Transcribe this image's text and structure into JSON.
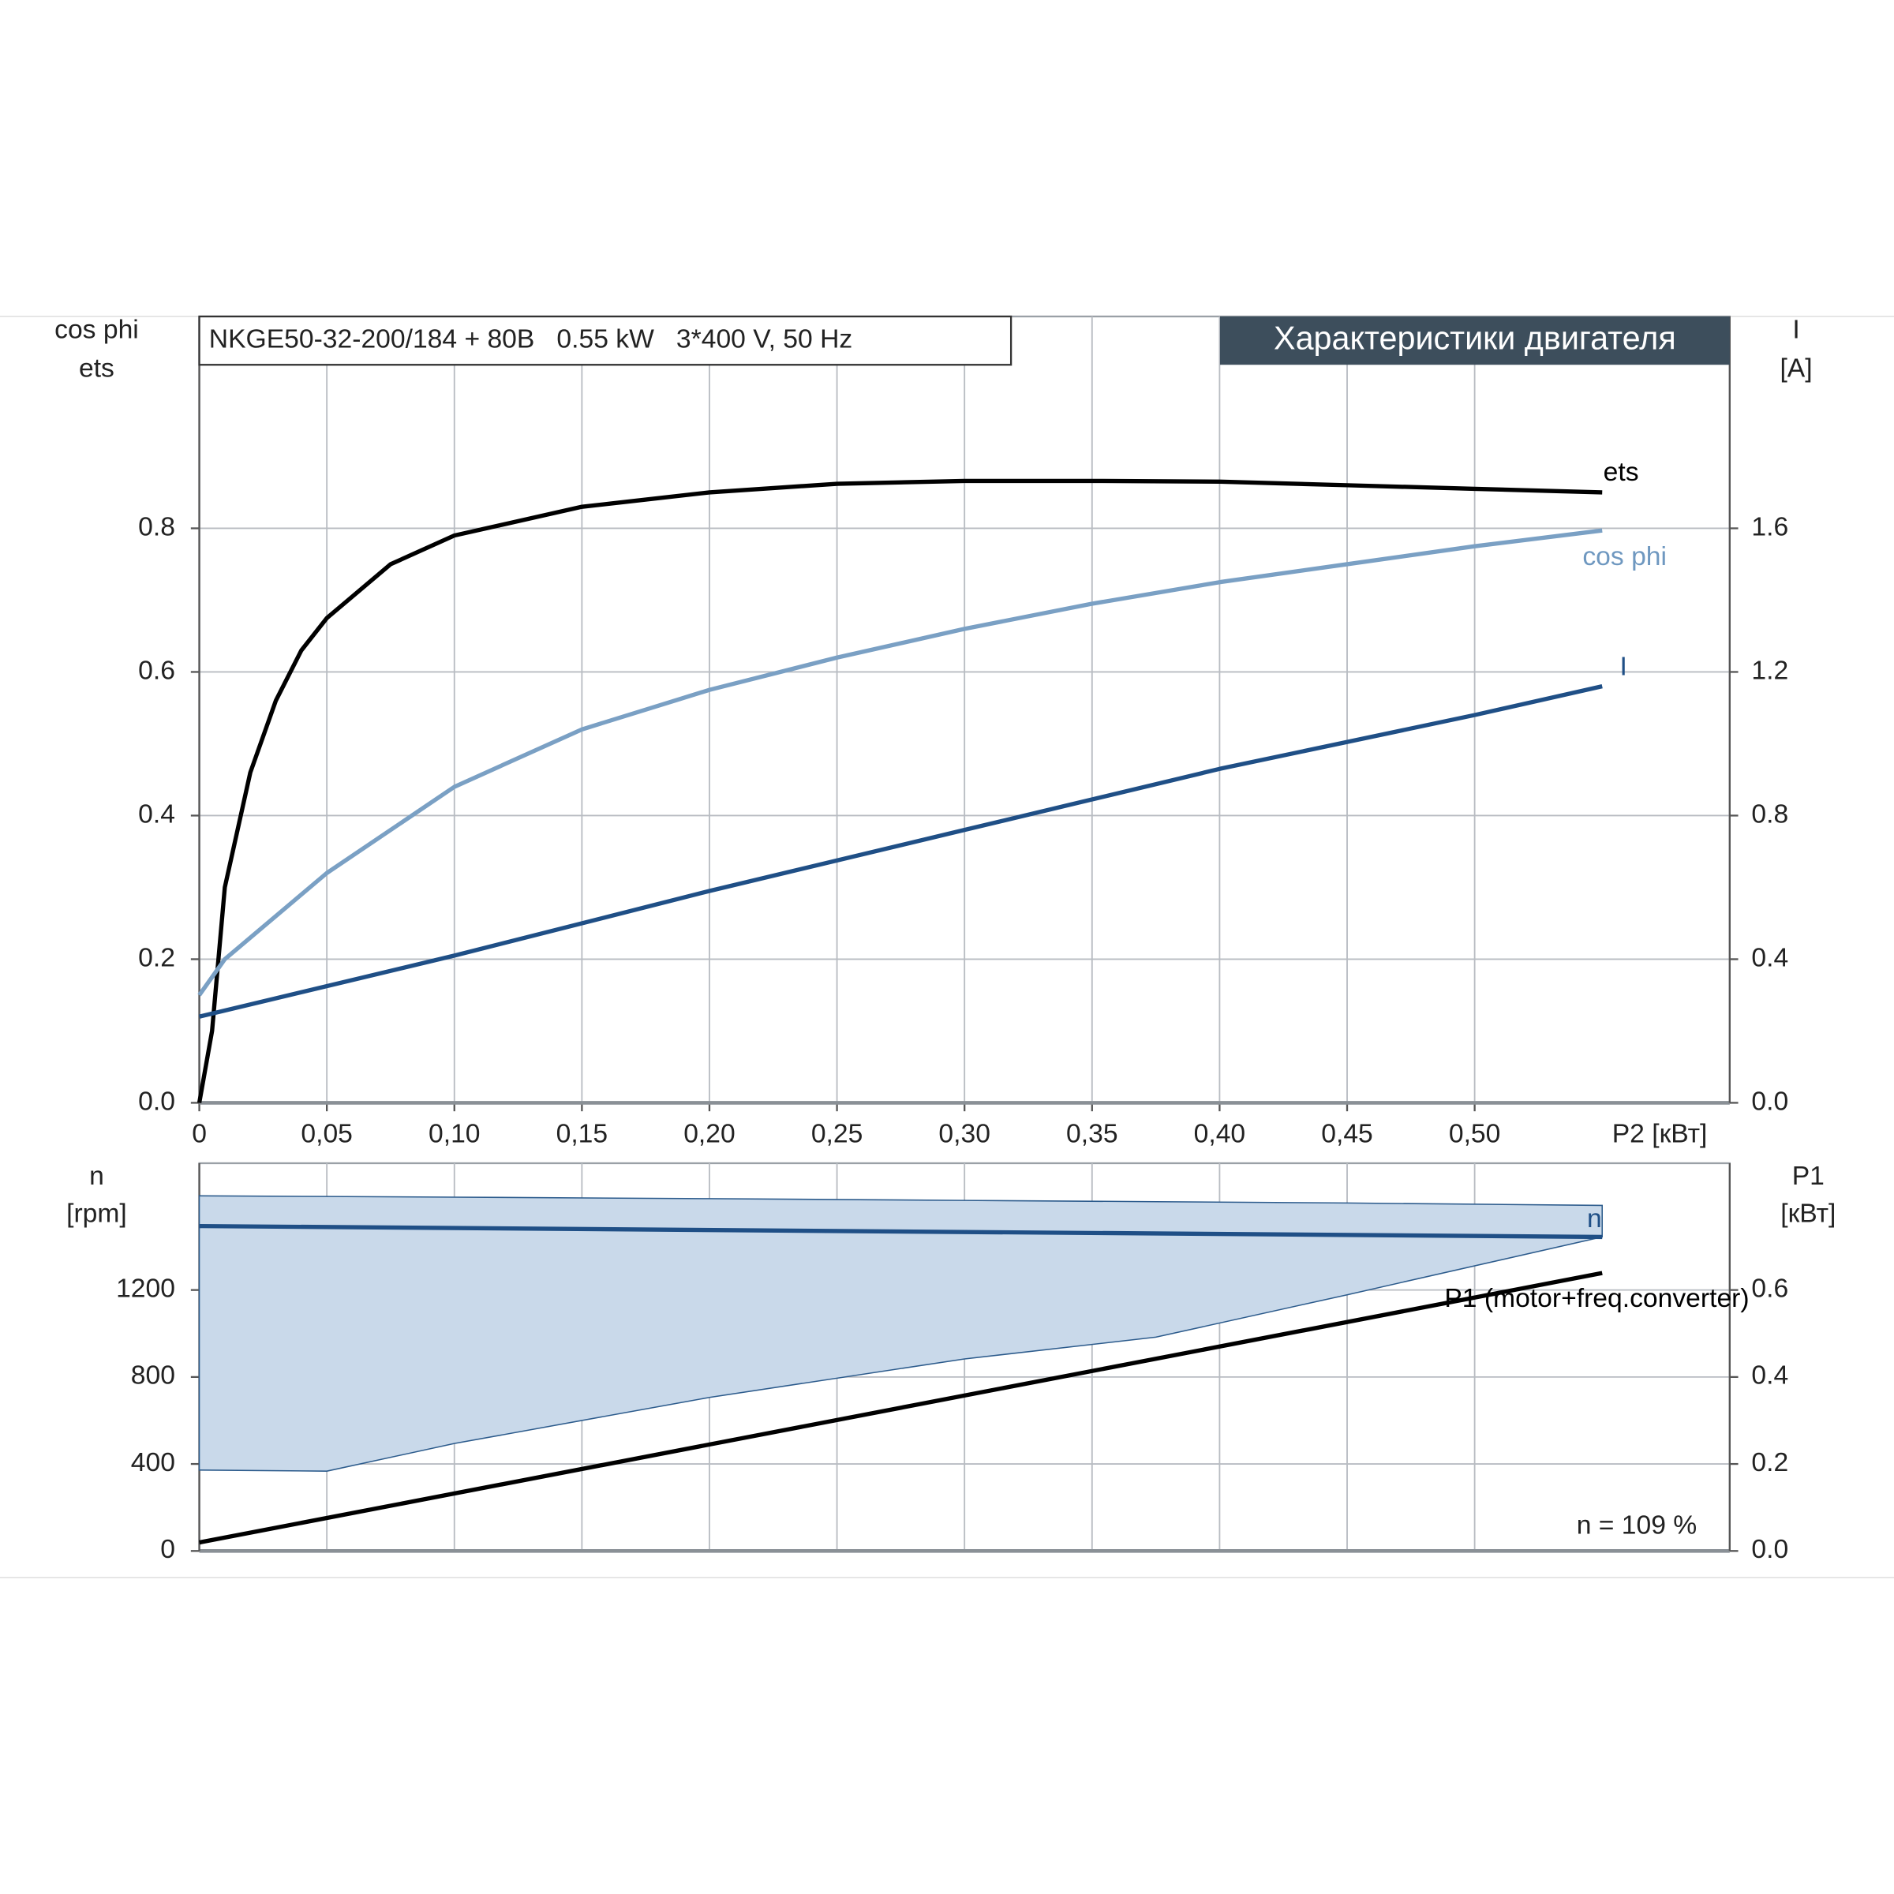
{
  "chart_data": [
    {
      "type": "line",
      "title": "NKGE50-32-200/184 + 80B   0.55 kW   3*400 V, 50 Hz",
      "subtitle": "Характеристики двигателя",
      "y_label": [
        "cos phi",
        "ets"
      ],
      "y2_label": [
        "I",
        "[A]"
      ],
      "x_label": "P2 [кВт]",
      "xlim": [
        0,
        0.6
      ],
      "xticks": [
        0,
        {
          "value": 0.05,
          "label": "0,05"
        },
        {
          "value": 0.1,
          "label": "0,10"
        },
        {
          "value": 0.15,
          "label": "0,15"
        },
        {
          "value": 0.2,
          "label": "0,20"
        },
        {
          "value": 0.25,
          "label": "0,25"
        },
        {
          "value": 0.3,
          "label": "0,30"
        },
        {
          "value": 0.35,
          "label": "0,35"
        },
        {
          "value": 0.4,
          "label": "0,40"
        },
        {
          "value": 0.45,
          "label": "0,45"
        },
        {
          "value": 0.5,
          "label": "0,50"
        }
      ],
      "ylim": [
        0,
        1.095
      ],
      "yticks": [
        {
          "value": 0,
          "label": "0.0"
        },
        0.2,
        0.4,
        0.6,
        0.8
      ],
      "y2lim": [
        0,
        2.19
      ],
      "y2ticks": [
        {
          "value": 0,
          "label": "0.0"
        },
        0.4,
        0.8,
        1.2,
        1.6
      ],
      "grid": true,
      "series": [
        {
          "name": "ets",
          "color": "#000000",
          "x": [
            0,
            0.005,
            0.01,
            0.02,
            0.03,
            0.04,
            0.05,
            0.075,
            0.1,
            0.15,
            0.2,
            0.25,
            0.3,
            0.35,
            0.4,
            0.45,
            0.5,
            0.55
          ],
          "values": [
            0,
            0.1,
            0.3,
            0.46,
            0.56,
            0.63,
            0.675,
            0.75,
            0.79,
            0.83,
            0.85,
            0.862,
            0.866,
            0.866,
            0.865,
            0.86,
            0.855,
            0.85
          ]
        },
        {
          "name": "cos phi",
          "color": "#7aa0c4",
          "x": [
            0,
            0.01,
            0.05,
            0.1,
            0.15,
            0.2,
            0.25,
            0.3,
            0.35,
            0.4,
            0.45,
            0.5,
            0.55
          ],
          "values": [
            0.15,
            0.2,
            0.32,
            0.44,
            0.52,
            0.575,
            0.62,
            0.66,
            0.695,
            0.725,
            0.75,
            0.775,
            0.797
          ]
        },
        {
          "name": "I",
          "color": "#1f4f86",
          "axis": "y2",
          "x": [
            0,
            0.1,
            0.2,
            0.3,
            0.4,
            0.5,
            0.55
          ],
          "values": [
            0.24,
            0.41,
            0.59,
            0.76,
            0.93,
            1.08,
            1.16
          ]
        }
      ]
    },
    {
      "type": "line",
      "y_label": [
        "n",
        "[rpm]"
      ],
      "y2_label": [
        "P1",
        "[кВт]"
      ],
      "annotation": "n = 109 %",
      "xlim": [
        0,
        0.6
      ],
      "ylim": [
        0,
        1783
      ],
      "yticks": [
        0,
        400,
        800,
        1200
      ],
      "y2lim": [
        0,
        0.8915
      ],
      "y2ticks": [
        {
          "value": 0,
          "label": "0.0"
        },
        0.2,
        0.4,
        0.6
      ],
      "grid": true,
      "band": {
        "color": "#c9d9ea",
        "x": [
          0,
          0.05,
          0.1,
          0.2,
          0.3,
          0.375,
          0.45,
          0.55
        ],
        "upper": [
          1633,
          1630,
          1627,
          1620,
          1612,
          1606,
          1600,
          1589
        ],
        "lower": [
          372,
          367,
          494,
          706,
          883,
          983,
          1178,
          1444
        ]
      },
      "series": [
        {
          "name": "n",
          "color": "#1f4f86",
          "x": [
            0,
            0.55
          ],
          "values": [
            1494,
            1444
          ]
        },
        {
          "name": "P1 (motor+freq.converter)",
          "color": "#000000",
          "axis": "y2",
          "x": [
            0,
            0.55
          ],
          "values": [
            0.0195,
            0.639
          ]
        }
      ]
    }
  ]
}
